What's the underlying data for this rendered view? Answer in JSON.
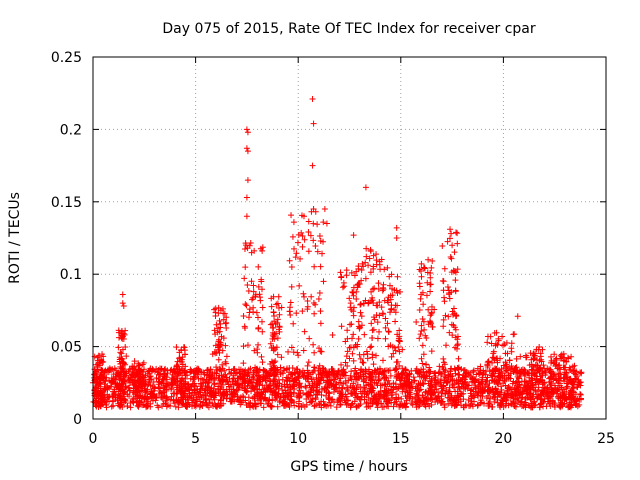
{
  "chart_data": {
    "type": "scatter",
    "title": "Day 075 of 2015, Rate Of TEC Index for receiver cpar",
    "xlabel": "GPS time / hours",
    "ylabel": "ROTI / TECUs",
    "xlim": [
      0,
      25
    ],
    "ylim": [
      0,
      0.25
    ],
    "xticks": [
      0,
      5,
      10,
      15,
      20,
      25
    ],
    "xtick_labels": [
      "0",
      "5",
      "10",
      "15",
      "20",
      "25"
    ],
    "yticks": [
      0,
      0.05,
      0.1,
      0.15,
      0.2,
      0.25
    ],
    "ytick_labels": [
      "0",
      "0.05",
      "0.1",
      "0.15",
      "0.2",
      "0.25"
    ],
    "grid": true,
    "marker": "+",
    "color": "#ff0000",
    "baseline": {
      "x_start": 0.0,
      "x_end": 23.8,
      "y_low": 0.008,
      "y_high": 0.035
    },
    "bursts": [
      {
        "x": 0.3,
        "width": 0.4,
        "peak": 0.045
      },
      {
        "x": 1.4,
        "width": 0.3,
        "peak": 0.062
      },
      {
        "x": 2.2,
        "width": 0.5,
        "peak": 0.04
      },
      {
        "x": 4.3,
        "width": 0.4,
        "peak": 0.05
      },
      {
        "x": 6.2,
        "width": 0.5,
        "peak": 0.077
      },
      {
        "x": 7.8,
        "width": 0.8,
        "peak": 0.122
      },
      {
        "x": 8.9,
        "width": 0.5,
        "peak": 0.085
      },
      {
        "x": 10.4,
        "width": 1.4,
        "peak": 0.145
      },
      {
        "x": 12.6,
        "width": 0.9,
        "peak": 0.11
      },
      {
        "x": 13.6,
        "width": 0.8,
        "peak": 0.12
      },
      {
        "x": 14.6,
        "width": 0.8,
        "peak": 0.105
      },
      {
        "x": 16.2,
        "width": 0.6,
        "peak": 0.11
      },
      {
        "x": 17.4,
        "width": 0.7,
        "peak": 0.13
      },
      {
        "x": 19.9,
        "width": 1.2,
        "peak": 0.06
      },
      {
        "x": 21.5,
        "width": 0.8,
        "peak": 0.05
      },
      {
        "x": 22.9,
        "width": 1.0,
        "peak": 0.045
      }
    ],
    "outliers": [
      {
        "x": 1.45,
        "y": 0.086
      },
      {
        "x": 1.45,
        "y": 0.08
      },
      {
        "x": 1.5,
        "y": 0.078
      },
      {
        "x": 7.5,
        "y": 0.2
      },
      {
        "x": 7.55,
        "y": 0.198
      },
      {
        "x": 7.5,
        "y": 0.187
      },
      {
        "x": 7.55,
        "y": 0.185
      },
      {
        "x": 7.55,
        "y": 0.165
      },
      {
        "x": 7.5,
        "y": 0.153
      },
      {
        "x": 7.5,
        "y": 0.14
      },
      {
        "x": 10.7,
        "y": 0.221
      },
      {
        "x": 10.75,
        "y": 0.204
      },
      {
        "x": 10.7,
        "y": 0.175
      },
      {
        "x": 10.75,
        "y": 0.145
      },
      {
        "x": 11.3,
        "y": 0.145
      },
      {
        "x": 11.4,
        "y": 0.135
      },
      {
        "x": 13.3,
        "y": 0.16
      },
      {
        "x": 12.7,
        "y": 0.127
      },
      {
        "x": 14.8,
        "y": 0.132
      },
      {
        "x": 14.8,
        "y": 0.125
      },
      {
        "x": 17.4,
        "y": 0.131
      },
      {
        "x": 17.45,
        "y": 0.128
      },
      {
        "x": 17.5,
        "y": 0.12
      },
      {
        "x": 20.7,
        "y": 0.071
      }
    ],
    "seed": 75
  }
}
